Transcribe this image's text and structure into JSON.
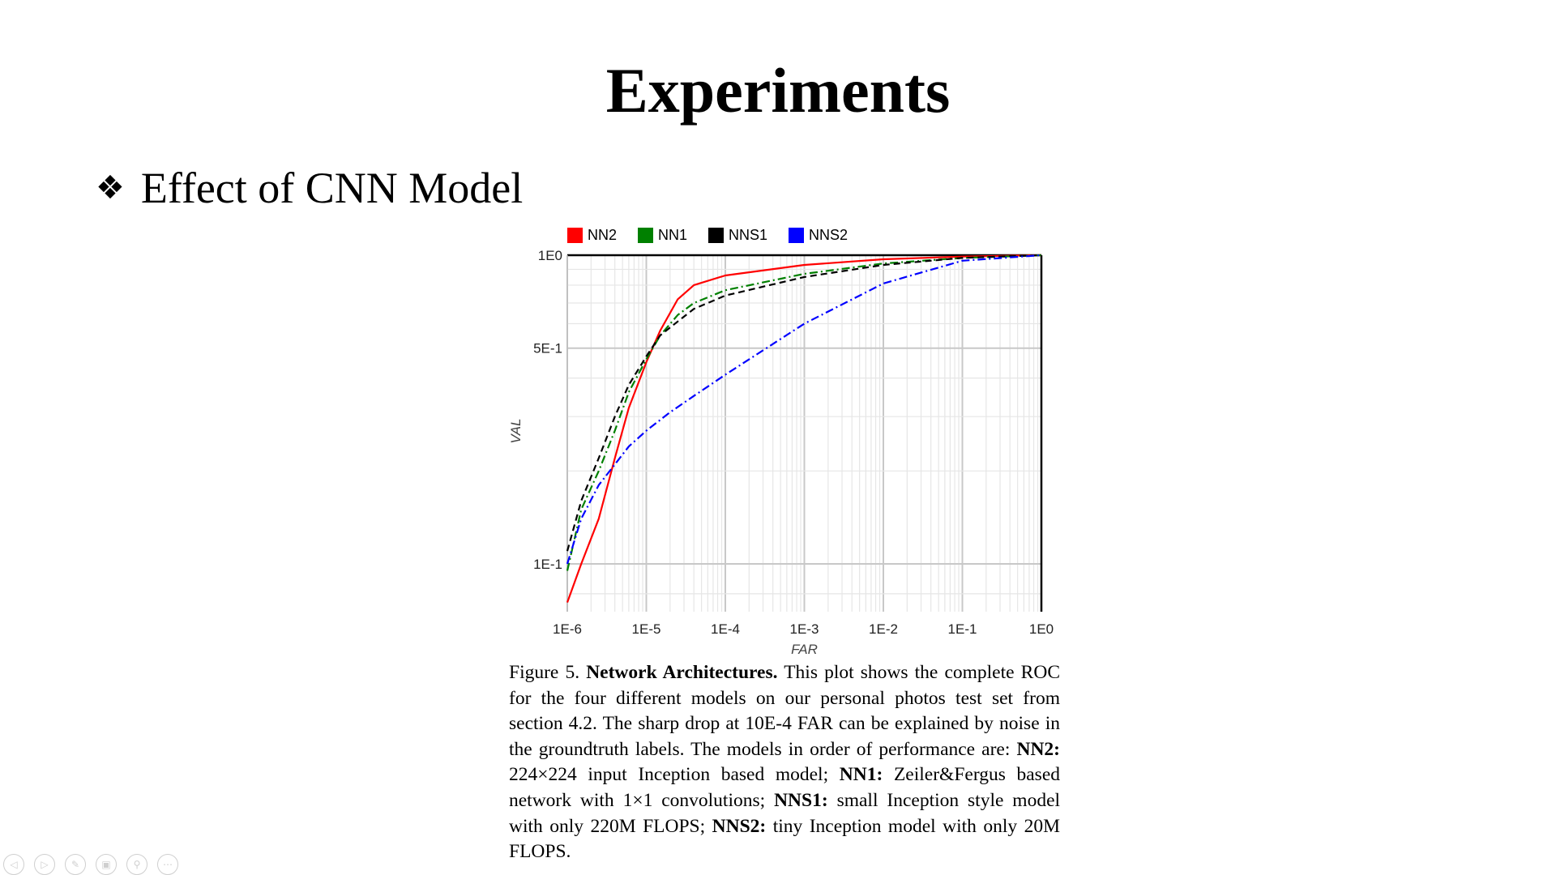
{
  "slide": {
    "title": "Experiments",
    "bullet_icon": "four-diamond-bullet-icon",
    "bullet_text": "Effect of CNN Model"
  },
  "chart_data": {
    "type": "line",
    "title": "",
    "xlabel": "FAR",
    "ylabel": "VAL",
    "x_scale": "log",
    "y_scale": "log",
    "xlim": [
      1e-06,
      1
    ],
    "ylim": [
      0.07,
      1
    ],
    "grid": true,
    "legend_position": "top",
    "x_ticks": [
      "1E-6",
      "1E-5",
      "1E-4",
      "1E-3",
      "1E-2",
      "1E-1",
      "1E0"
    ],
    "y_ticks": [
      {
        "label": "1E0",
        "value": 1
      },
      {
        "label": "5E-1",
        "value": 0.5
      },
      {
        "label": "1E-1",
        "value": 0.1
      }
    ],
    "series": [
      {
        "name": "NN2",
        "color": "#ff0000",
        "dash": "solid",
        "x": [
          1e-06,
          1.5e-06,
          2.5e-06,
          4e-06,
          6e-06,
          1e-05,
          1.5e-05,
          2.5e-05,
          4e-05,
          0.0001,
          0.001,
          0.01,
          0.1,
          1
        ],
        "y": [
          0.075,
          0.1,
          0.14,
          0.22,
          0.32,
          0.45,
          0.57,
          0.72,
          0.8,
          0.86,
          0.93,
          0.97,
          0.99,
          1.0
        ]
      },
      {
        "name": "NN1",
        "color": "#008000",
        "dash": "dashdot",
        "x": [
          1e-06,
          1.5e-06,
          2.5e-06,
          4e-06,
          6e-06,
          1e-05,
          1.5e-05,
          2.5e-05,
          4e-05,
          0.0001,
          0.001,
          0.01,
          0.1,
          1
        ],
        "y": [
          0.095,
          0.15,
          0.2,
          0.27,
          0.36,
          0.46,
          0.55,
          0.64,
          0.7,
          0.77,
          0.87,
          0.94,
          0.98,
          1.0
        ]
      },
      {
        "name": "NNS1",
        "color": "#000000",
        "dash": "dashed",
        "x": [
          1e-06,
          1.5e-06,
          2.5e-06,
          4e-06,
          6e-06,
          1e-05,
          1.5e-05,
          2.5e-05,
          4e-05,
          0.0001,
          0.001,
          0.01,
          0.1,
          1
        ],
        "y": [
          0.11,
          0.16,
          0.22,
          0.3,
          0.38,
          0.47,
          0.55,
          0.61,
          0.67,
          0.74,
          0.85,
          0.93,
          0.98,
          1.0
        ]
      },
      {
        "name": "NNS2",
        "color": "#0000ff",
        "dash": "dashdot",
        "x": [
          1e-06,
          1.5e-06,
          2.5e-06,
          4e-06,
          6e-06,
          1e-05,
          2e-05,
          4e-05,
          0.0001,
          0.001,
          0.01,
          0.1,
          1
        ],
        "y": [
          0.1,
          0.14,
          0.18,
          0.21,
          0.24,
          0.27,
          0.31,
          0.35,
          0.41,
          0.6,
          0.81,
          0.96,
          1.0
        ]
      }
    ]
  },
  "caption": {
    "figure_label": "Figure 5.",
    "heading": "Network Architectures.",
    "part1": "This plot shows the complete ROC for the four different models on our personal photos test set from section 4.2. The sharp drop at 10E-4 FAR can be explained by noise in the groundtruth labels. The models in order of performance are:",
    "nn2_label": "NN2:",
    "nn2_text": "224×224 input Inception based model;",
    "nn1_label": "NN1:",
    "nn1_text": "Zeiler&Fergus based network with 1×1 convolutions;",
    "nns1_label": "NNS1:",
    "nns1_text": "small Inception style model with only 220M FLOPS;",
    "nns2_label": "NNS2:",
    "nns2_text": "tiny Inception model with only 20M FLOPS."
  },
  "nav_buttons": [
    "previous-icon",
    "next-icon",
    "pen-icon",
    "slides-icon",
    "zoom-icon",
    "more-icon"
  ],
  "nav_glyphs": [
    "◁",
    "▷",
    "✎",
    "▣",
    "⚲",
    "⋯"
  ]
}
